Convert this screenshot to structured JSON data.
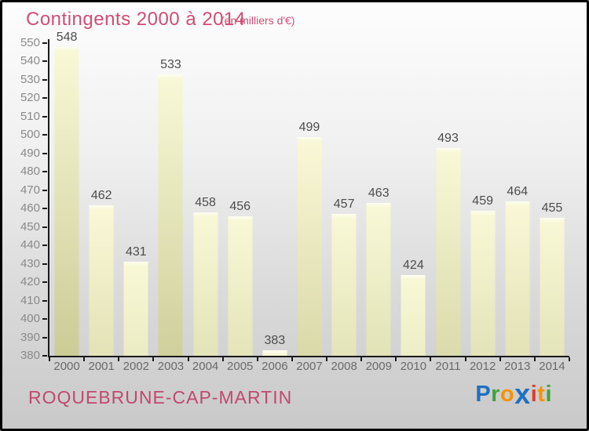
{
  "title": {
    "text": "Contingents 2000 à 2014",
    "subtitle": "(en milliers d'€)",
    "color": "#cf4d74"
  },
  "footer": {
    "location": "ROQUEBRUNE-CAP-MARTIN"
  },
  "logo": {
    "name": "Proxiti",
    "letters": [
      {
        "char": "P",
        "color": "#1d71bf"
      },
      {
        "char": "r",
        "color": "#3fa33c"
      },
      {
        "char": "o",
        "color": "#f59300"
      },
      {
        "char": "x",
        "color": "#1d71bf"
      },
      {
        "char": "i",
        "color": "#e23b2b"
      },
      {
        "char": "t",
        "color": "#f59300"
      },
      {
        "char": "i",
        "color": "#3fa33c"
      }
    ]
  },
  "chart_data": {
    "type": "bar",
    "title": "Contingents 2000 à 2014",
    "subtitle": "(en milliers d'€)",
    "xlabel": "",
    "ylabel": "",
    "categories": [
      "2000",
      "2001",
      "2002",
      "2003",
      "2004",
      "2005",
      "2006",
      "2007",
      "2008",
      "2009",
      "2010",
      "2011",
      "2012",
      "2013",
      "2014"
    ],
    "values": [
      548,
      462,
      431,
      533,
      458,
      456,
      383,
      499,
      457,
      463,
      424,
      493,
      459,
      464,
      455
    ],
    "ylim": [
      380,
      550
    ],
    "ytick_step": 10,
    "yticks": [
      550,
      540,
      530,
      520,
      510,
      500,
      490,
      480,
      470,
      460,
      450,
      440,
      430,
      420,
      410,
      400,
      390,
      380
    ],
    "grid": false,
    "legend": false,
    "bar_color_top": "#f8f8d6",
    "bar_color_bottom": "#cbcb95",
    "axis_color": "#1a1a1a",
    "value_label_color": "#4d4d4d",
    "tick_label_color": "#8a8a8a"
  }
}
